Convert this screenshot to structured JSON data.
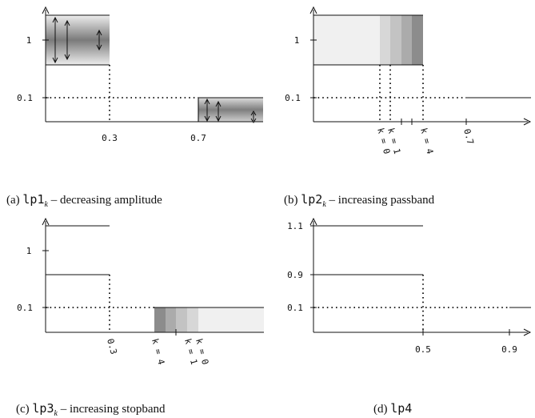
{
  "panels": [
    {
      "id": "a",
      "caption": {
        "prefix": "(a) ",
        "code": "lp1",
        "sub": "k",
        "suffix": " – decreasing amplitude"
      },
      "y_ticks": [
        "1",
        "0.1"
      ],
      "x_ticks": [
        "0.3",
        "0.7"
      ]
    },
    {
      "id": "b",
      "caption": {
        "prefix": "(b) ",
        "code": "lp2",
        "sub": "k",
        "suffix": " – increasing passband"
      },
      "y_ticks": [
        "1",
        "0.1"
      ],
      "x_ticks": [
        "0.7"
      ],
      "k_labels": [
        "k = 0",
        "k = 1",
        "k = 4"
      ]
    },
    {
      "id": "c",
      "caption": {
        "prefix": "(c) ",
        "code": "lp3",
        "sub": "k",
        "suffix": " – increasing stopband"
      },
      "y_ticks": [
        "1",
        "0.1"
      ],
      "x_ticks": [
        "0.3"
      ],
      "k_labels": [
        "k = 4",
        "k = 1",
        "k = 0"
      ]
    },
    {
      "id": "d",
      "caption": {
        "prefix": "(d) ",
        "code": "lp4",
        "sub": "",
        "suffix": ""
      },
      "y_ticks": [
        "1.1",
        "0.9",
        "0.1"
      ],
      "x_ticks": [
        "0.5",
        "0.9"
      ]
    }
  ]
}
